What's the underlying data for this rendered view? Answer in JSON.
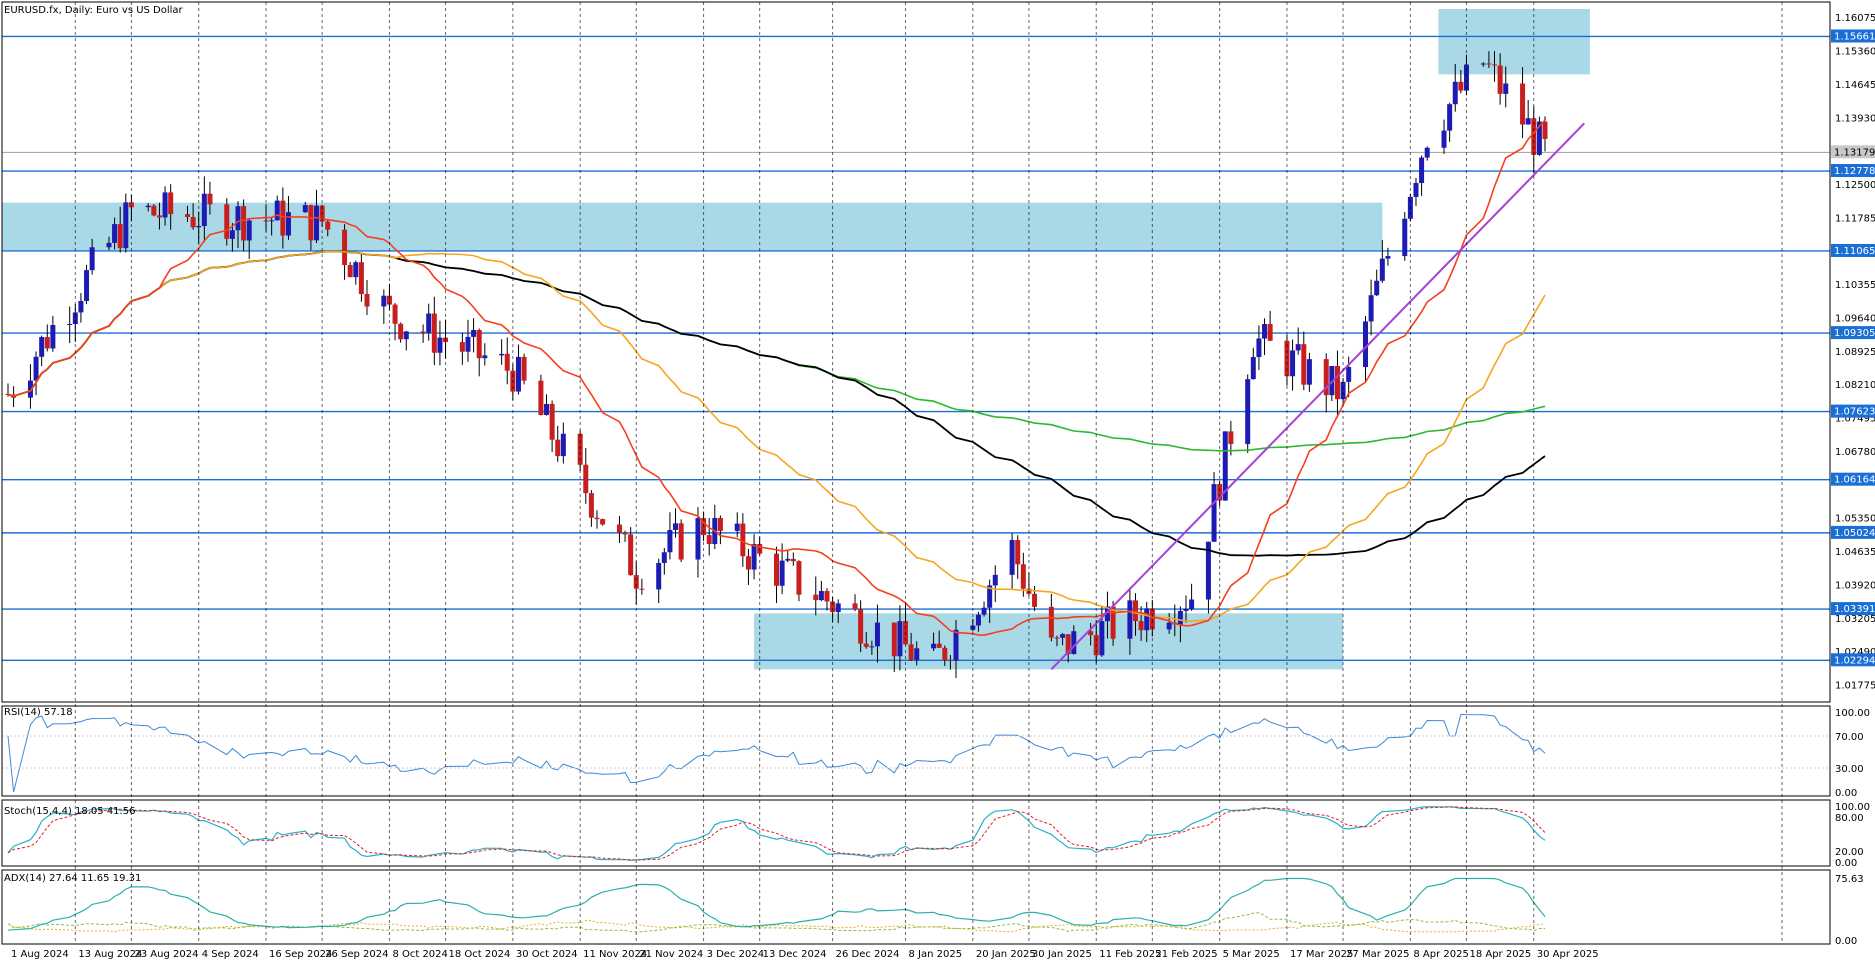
{
  "header": {
    "title": "EURUSD.fx, Daily:  Euro vs US Dollar"
  },
  "colors": {
    "bull": "#1c1cb4",
    "bear": "#c81e1e",
    "zone": "#a9d8e6",
    "level_line": "#1a6fd6",
    "ma_red": "#f5401e",
    "ma_orange": "#f5a623",
    "ma_green": "#2eb82e",
    "ma_black": "#000000",
    "trendline": "#a83fd6",
    "rsi": "#3c8ad8",
    "stoch_main": "#2ab0c8",
    "stoch_signal": "#e02020",
    "adx_main": "#2ab0a8",
    "adx_plus": "#8fbf3f",
    "adx_minus": "#e0b020",
    "price_tag_bg": "#1a6fd6",
    "current_tag_bg": "#c8c8c8"
  },
  "price_axis": {
    "ticks": [
      "1.16075",
      "1.15360",
      "1.14645",
      "1.13930",
      "1.13179",
      "1.12500",
      "1.11785",
      "1.11065",
      "1.10355",
      "1.09640",
      "1.08925",
      "1.08210",
      "1.07495",
      "1.06780",
      "1.06164",
      "1.05350",
      "1.04635",
      "1.03920",
      "1.03205",
      "1.02490",
      "1.01775"
    ],
    "level_tags": [
      "1.15661",
      "1.12778",
      "1.11065",
      "1.09305",
      "1.07623",
      "1.06164",
      "1.05024",
      "1.03391",
      "1.02294"
    ],
    "current_price": "1.13179"
  },
  "time_axis": {
    "labels": [
      "1 Aug 2024",
      "13 Aug 2024",
      "23 Aug 2024",
      "4 Sep 2024",
      "16 Sep 2024",
      "26 Sep 2024",
      "8 Oct 2024",
      "18 Oct 2024",
      "30 Oct 2024",
      "11 Nov 2024",
      "21 Nov 2024",
      "3 Dec 2024",
      "13 Dec 2024",
      "26 Dec 2024",
      "8 Jan 2025",
      "20 Jan 2025",
      "30 Jan 2025",
      "11 Feb 2025",
      "21 Feb 2025",
      "5 Mar 2025",
      "17 Mar 2025",
      "27 Mar 2025",
      "8 Apr 2025",
      "18 Apr 2025",
      "30 Apr 2025"
    ]
  },
  "indicators": {
    "rsi": {
      "label": "RSI(14) 57.18",
      "ticks": [
        "100.00",
        "70.00",
        "30.00",
        "0.00"
      ]
    },
    "stoch": {
      "label": "Stoch(15,4,4) 18.05 41.56",
      "ticks": [
        "100.00",
        "80.00",
        "20.00",
        "0.00"
      ]
    },
    "adx": {
      "label": "ADX(14) 27.64 11.65 19.31",
      "ticks": [
        "75.63",
        "0.00"
      ]
    }
  },
  "chart_data": {
    "type": "candlestick",
    "symbol": "EURUSD.fx",
    "timeframe": "Daily",
    "ylim": [
      1.014,
      1.164
    ],
    "x_range": [
      "1 Aug 2024",
      "30 Apr 2025"
    ],
    "levels": [
      1.15661,
      1.12778,
      1.11065,
      1.09305,
      1.07623,
      1.06164,
      1.05024,
      1.03391,
      1.02294
    ],
    "zones": [
      {
        "from": "13 Apr 2025",
        "to": "10 May 2025",
        "low": 1.1485,
        "high": 1.1625
      },
      {
        "from": "1 Aug 2024",
        "to": "3 Apr 2025",
        "low": 1.1108,
        "high": 1.121
      },
      {
        "from": "12 Dec 2024",
        "to": "27 Mar 2025",
        "low": 1.021,
        "high": 1.033
      }
    ],
    "trendline": {
      "from": {
        "x": "3 Feb 2025",
        "y": 1.021
      },
      "to": {
        "x": "9 May 2025",
        "y": 1.138
      }
    },
    "key_closes": [
      {
        "x": "1 Aug 2024",
        "y": 1.08
      },
      {
        "x": "23 Aug 2024",
        "y": 1.119
      },
      {
        "x": "26 Sep 2024",
        "y": 1.117
      },
      {
        "x": "8 Oct 2024",
        "y": 1.097
      },
      {
        "x": "30 Oct 2024",
        "y": 1.085
      },
      {
        "x": "21 Nov 2024",
        "y": 1.042
      },
      {
        "x": "3 Dec 2024",
        "y": 1.052
      },
      {
        "x": "13 Jan 2025",
        "y": 1.022
      },
      {
        "x": "27 Jan 2025",
        "y": 1.047
      },
      {
        "x": "3 Feb 2025",
        "y": 1.025
      },
      {
        "x": "28 Feb 2025",
        "y": 1.037
      },
      {
        "x": "11 Mar 2025",
        "y": 1.092
      },
      {
        "x": "27 Mar 2025",
        "y": 1.08
      },
      {
        "x": "11 Apr 2025",
        "y": 1.136
      },
      {
        "x": "21 Apr 2025",
        "y": 1.151
      },
      {
        "x": "2 May 2025",
        "y": 1.1318
      }
    ]
  }
}
